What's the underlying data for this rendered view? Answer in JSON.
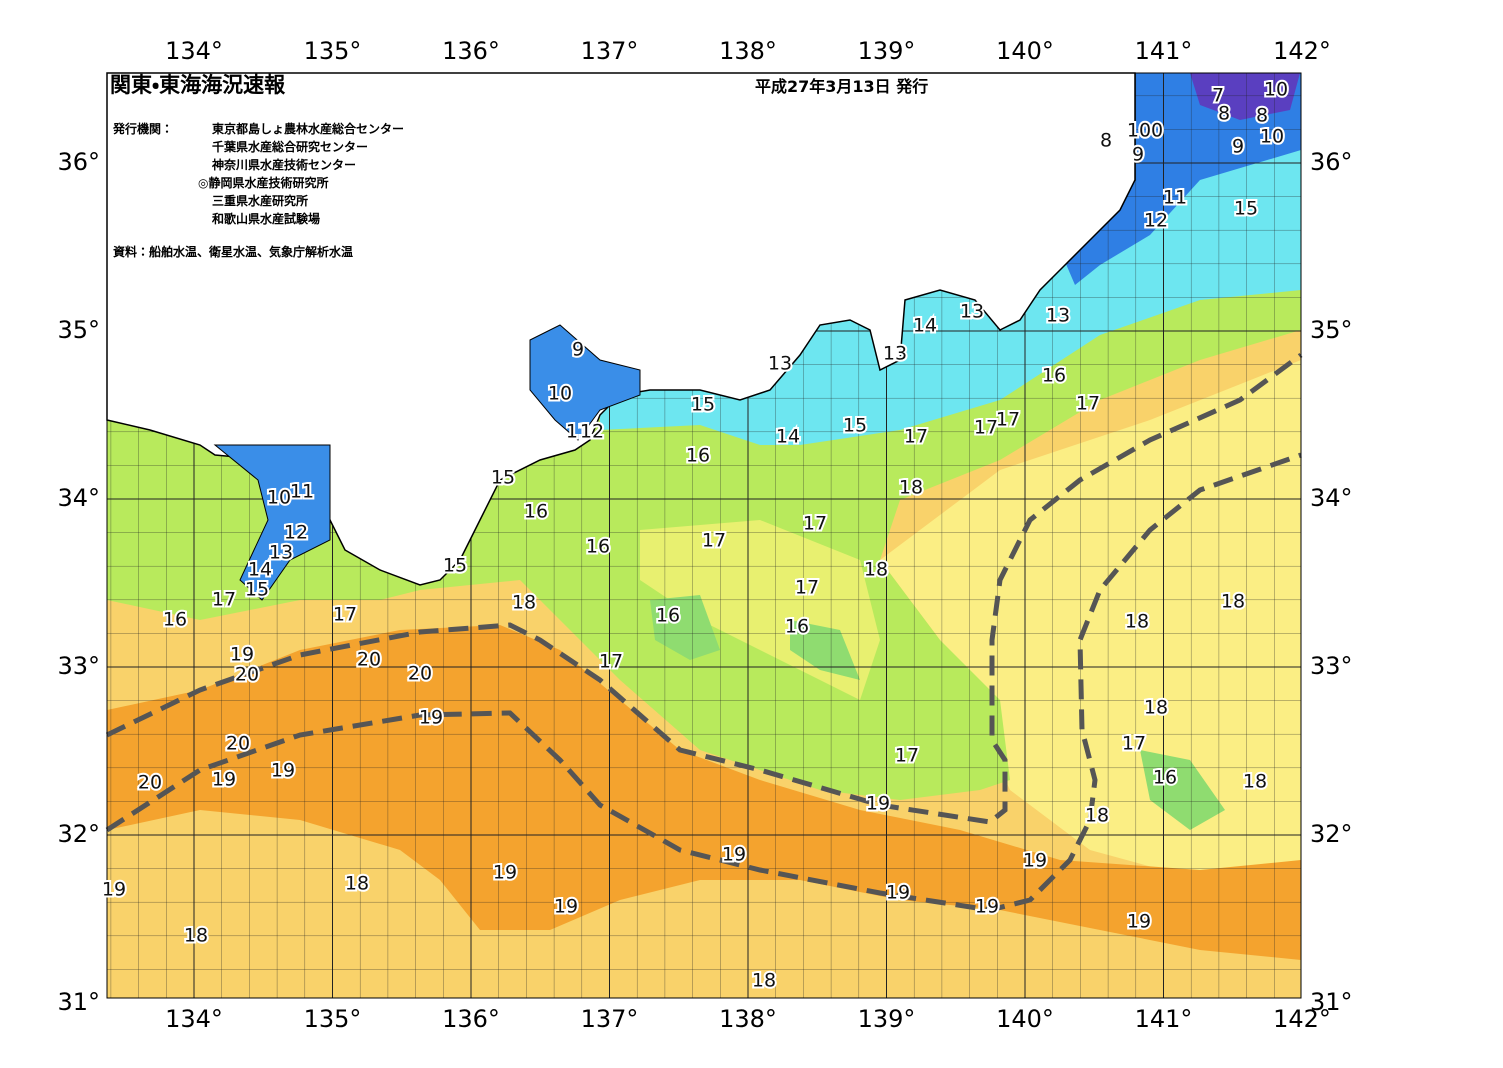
{
  "header": {
    "title": "関東・東海海況速報",
    "date": "平成27年3月13日 発行"
  },
  "agencies": {
    "label": "発行機関：",
    "items": [
      "東京都島しょ農林水産総合センター",
      "千葉県水産総合研究センター",
      "神奈川県水産技術センター",
      "◎静岡県水産技術研究所",
      "三重県水産研究所",
      "和歌山県水産試験場"
    ]
  },
  "source": "資料：船舶水温、衛星水温、気象庁解析水温",
  "longitude_labels": [
    "134°",
    "135°",
    "136°",
    "137°",
    "138°",
    "139°",
    "140°",
    "141°",
    "142°"
  ],
  "latitude_labels": [
    "36°",
    "35°",
    "34°",
    "33°",
    "32°",
    "31°"
  ],
  "isotherm_labels": [
    9,
    10,
    11,
    12,
    13,
    13,
    14,
    13,
    13,
    15,
    14,
    15,
    17,
    17,
    17,
    16,
    17,
    16,
    18,
    15,
    16,
    17,
    16,
    17,
    18,
    17,
    15,
    18,
    16,
    16,
    17,
    10,
    11,
    12,
    13,
    14,
    15,
    17,
    16,
    17,
    19,
    20,
    20,
    20,
    19,
    20,
    19,
    19,
    20,
    18,
    18,
    18,
    17,
    16,
    18,
    18,
    17,
    19,
    19,
    19,
    19,
    18,
    19,
    19,
    19,
    19,
    19,
    18,
    18,
    8,
    100,
    9,
    11,
    12,
    15,
    7,
    8,
    10,
    8,
    10,
    9
  ]
}
